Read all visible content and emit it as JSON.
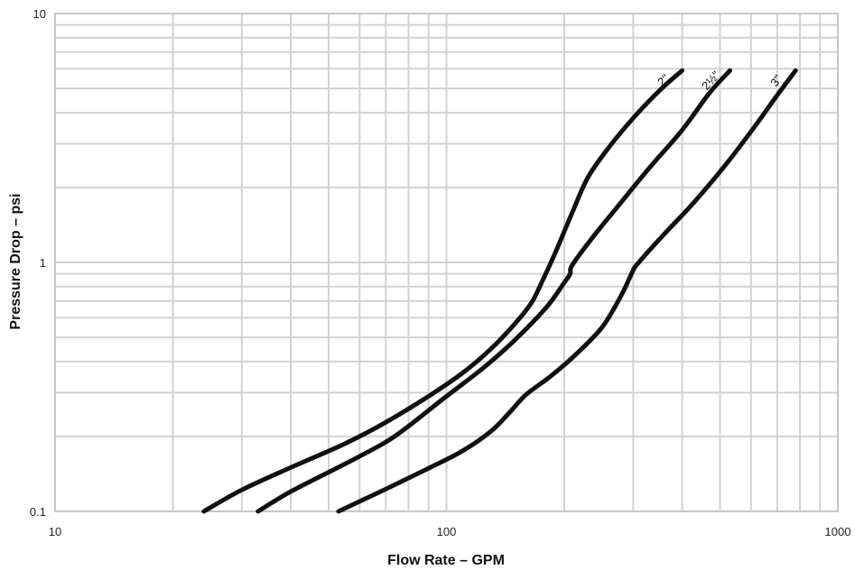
{
  "chart_data": {
    "type": "line",
    "xscale": "log",
    "yscale": "log",
    "xlim": [
      10,
      1000
    ],
    "ylim": [
      0.1,
      10
    ],
    "xlabel": "Flow Rate – GPM",
    "ylabel": "Pressure Drop – psi",
    "x_ticks": [
      "10",
      "100",
      "1000"
    ],
    "y_ticks": [
      "0.1",
      "1",
      "10"
    ],
    "grid": true,
    "series": [
      {
        "name": "2\"",
        "x": [
          24,
          30,
          40,
          55,
          70,
          90,
          110,
          130,
          150,
          165,
          175,
          190,
          210,
          230,
          260,
          300,
          350,
          400
        ],
        "y": [
          0.1,
          0.122,
          0.15,
          0.187,
          0.228,
          0.29,
          0.36,
          0.45,
          0.57,
          0.69,
          0.83,
          1.1,
          1.6,
          2.2,
          2.9,
          3.8,
          4.9,
          5.9
        ]
      },
      {
        "name": "2½\"",
        "x": [
          33,
          40,
          55,
          70,
          80,
          100,
          125,
          150,
          180,
          200,
          207,
          210,
          240,
          280,
          330,
          400,
          470,
          530
        ],
        "y": [
          0.1,
          0.12,
          0.155,
          0.19,
          0.22,
          0.29,
          0.38,
          0.49,
          0.66,
          0.83,
          0.9,
          0.98,
          1.3,
          1.75,
          2.4,
          3.4,
          4.8,
          5.9
        ]
      },
      {
        "name": "3\"",
        "x": [
          53,
          70,
          90,
          110,
          130,
          145,
          160,
          185,
          215,
          250,
          280,
          300,
          310,
          360,
          430,
          520,
          620,
          700,
          780
        ],
        "y": [
          0.1,
          0.123,
          0.149,
          0.175,
          0.21,
          0.25,
          0.295,
          0.35,
          0.43,
          0.55,
          0.74,
          0.93,
          1.0,
          1.3,
          1.75,
          2.5,
          3.6,
          4.7,
          5.9
        ]
      }
    ]
  }
}
